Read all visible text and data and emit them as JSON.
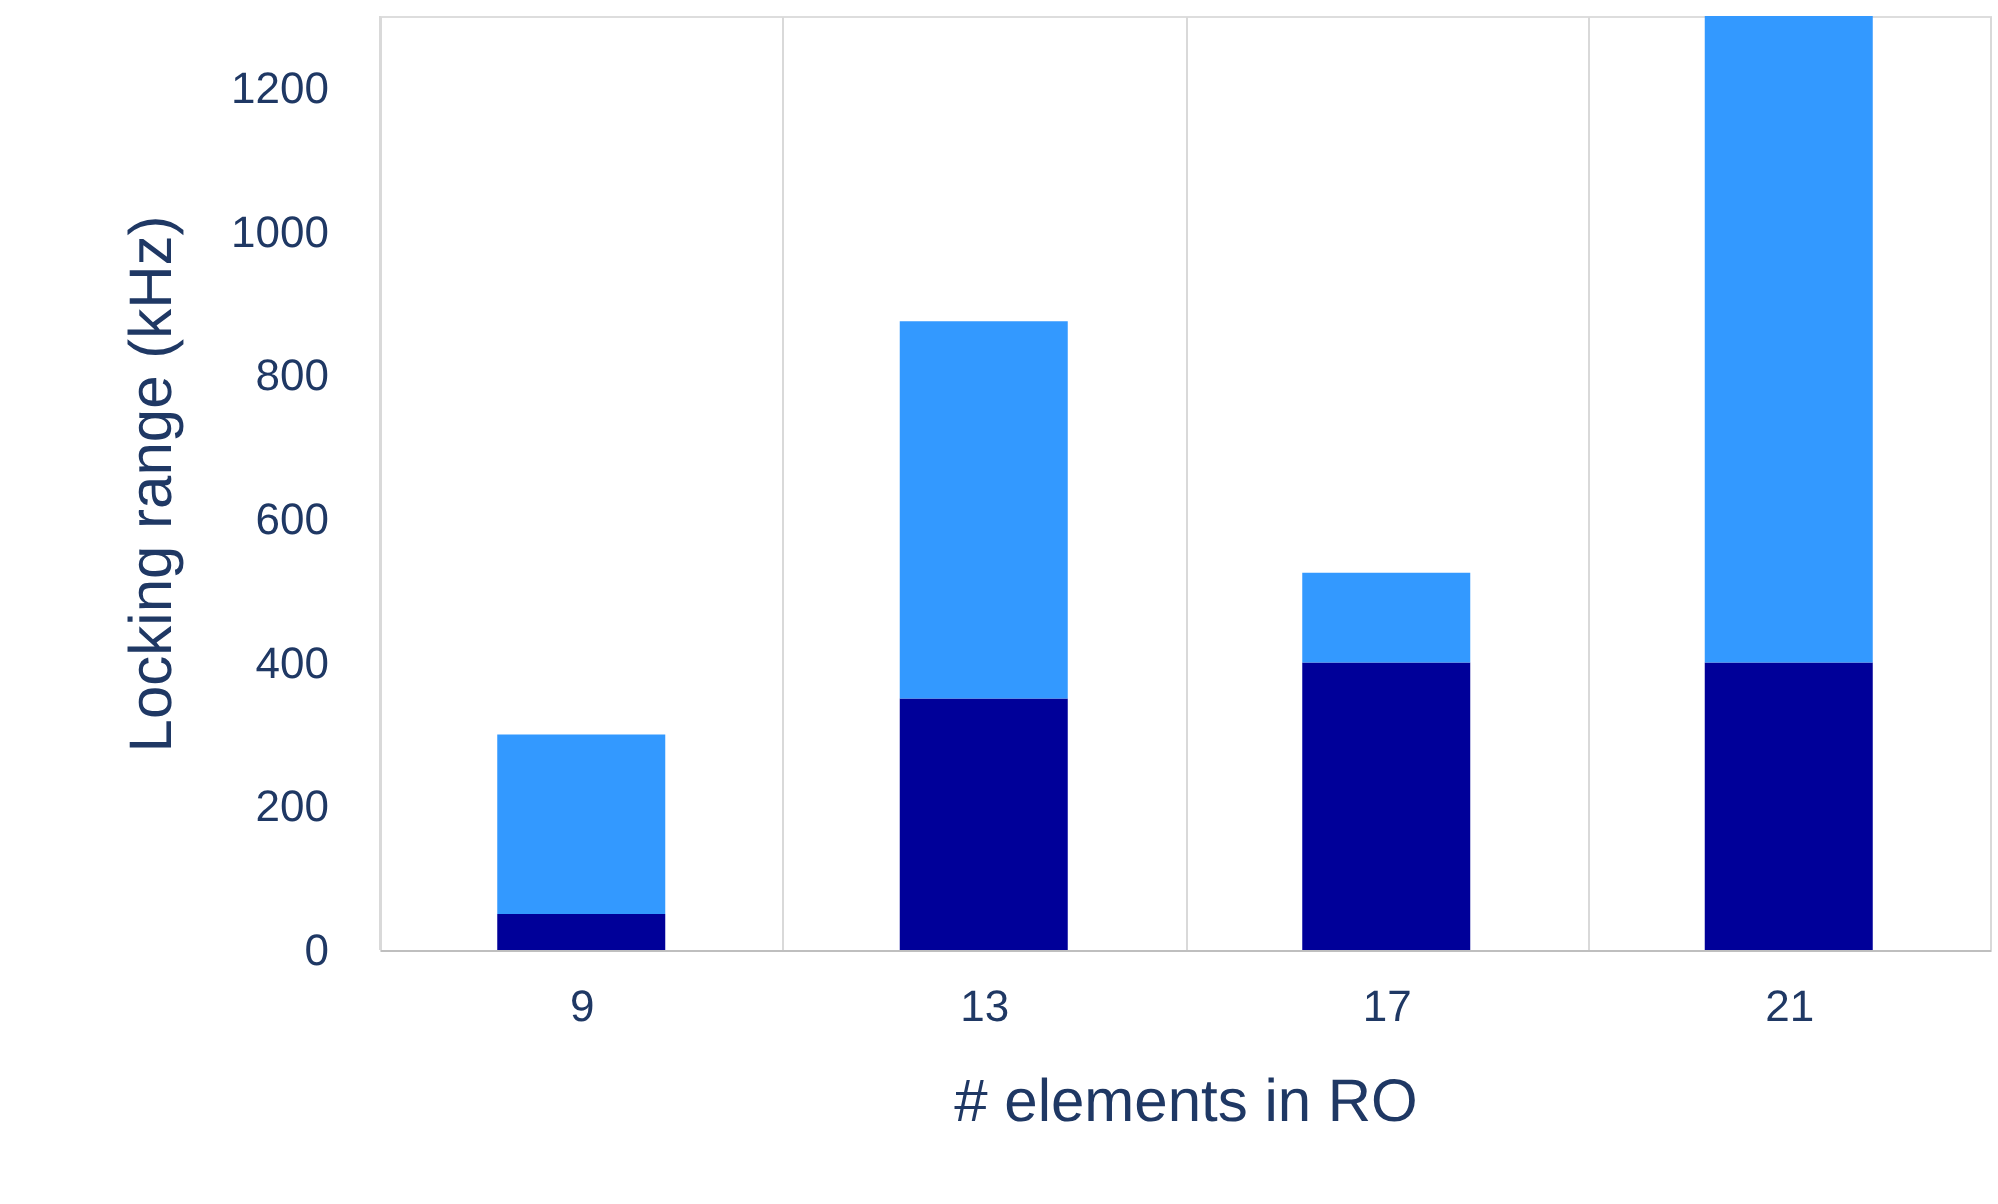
{
  "chart_data": {
    "type": "bar",
    "stacked": true,
    "xlabel": "# elements in RO",
    "ylabel": "Locking range (kHz)",
    "categories": [
      "9",
      "13",
      "17",
      "21"
    ],
    "series": [
      {
        "color": "#000099",
        "values": [
          50,
          350,
          400,
          400
        ]
      },
      {
        "color": "#3399ff",
        "values": [
          250,
          525,
          125,
          900
        ]
      }
    ],
    "ylim": [
      0,
      1300
    ],
    "yticks": [
      0,
      200,
      400,
      600,
      800,
      1000,
      1200
    ],
    "grid": "x"
  }
}
